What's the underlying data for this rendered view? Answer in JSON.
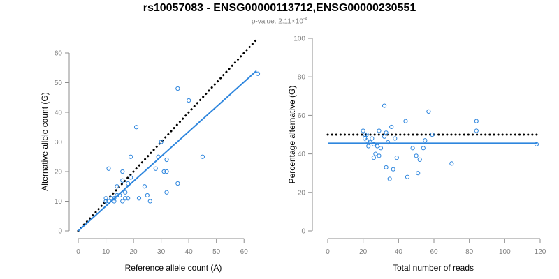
{
  "title": "rs10057083 - ENSG00000113712,ENSG00000230551",
  "subtitle": {
    "prefix": "p-value: 2.11×10",
    "exponent": "-4"
  },
  "colors": {
    "points": "#2e86de",
    "fit_line": "#2e86de",
    "reference_line": "#000000"
  },
  "chart_data": [
    {
      "type": "scatter",
      "xlabel": "Reference allele count (A)",
      "ylabel": "Alternative allele count (G)",
      "xlim": [
        0,
        65
      ],
      "ylim": [
        0,
        60
      ],
      "xticks": [
        0,
        10,
        20,
        30,
        40,
        50,
        60
      ],
      "yticks": [
        0,
        10,
        20,
        30,
        40,
        50,
        60
      ],
      "points": [
        [
          11,
          21
        ],
        [
          10,
          11
        ],
        [
          10,
          10
        ],
        [
          11,
          10
        ],
        [
          12,
          11
        ],
        [
          13,
          10
        ],
        [
          13,
          11
        ],
        [
          14,
          12
        ],
        [
          14,
          15
        ],
        [
          15,
          12
        ],
        [
          16,
          20
        ],
        [
          16,
          17
        ],
        [
          17,
          13
        ],
        [
          16,
          10
        ],
        [
          17,
          11
        ],
        [
          18,
          11
        ],
        [
          18,
          16
        ],
        [
          19,
          18
        ],
        [
          19,
          25
        ],
        [
          21,
          35
        ],
        [
          22,
          11
        ],
        [
          24,
          15
        ],
        [
          25,
          12
        ],
        [
          26,
          10
        ],
        [
          28,
          21
        ],
        [
          29,
          25
        ],
        [
          30,
          30
        ],
        [
          31,
          20
        ],
        [
          32,
          20
        ],
        [
          32,
          24
        ],
        [
          32,
          13
        ],
        [
          36,
          48
        ],
        [
          36,
          16
        ],
        [
          40,
          44
        ],
        [
          45,
          25
        ],
        [
          65,
          53
        ]
      ],
      "lines": [
        {
          "kind": "reference",
          "style": "dotted",
          "x": [
            0,
            64.5
          ],
          "y": [
            0,
            64.5
          ]
        },
        {
          "kind": "fit",
          "style": "solid",
          "x": [
            0,
            64.5
          ],
          "y": [
            0,
            54
          ]
        }
      ]
    },
    {
      "type": "scatter",
      "xlabel": "Total number of reads",
      "ylabel": "Percentage alternative (G)",
      "xlim": [
        0,
        120
      ],
      "ylim": [
        0,
        100
      ],
      "xticks": [
        0,
        20,
        40,
        60,
        80,
        100,
        120
      ],
      "yticks": [
        0,
        20,
        40,
        60,
        80,
        100
      ],
      "points": [
        [
          20,
          52
        ],
        [
          21,
          50
        ],
        [
          21,
          48
        ],
        [
          22,
          50
        ],
        [
          22,
          47
        ],
        [
          23,
          44
        ],
        [
          24,
          46
        ],
        [
          25,
          48
        ],
        [
          26,
          45
        ],
        [
          26,
          38
        ],
        [
          27,
          40
        ],
        [
          28,
          44
        ],
        [
          29,
          39
        ],
        [
          29,
          52
        ],
        [
          30,
          43
        ],
        [
          32,
          65
        ],
        [
          32,
          49
        ],
        [
          33,
          33
        ],
        [
          33,
          51
        ],
        [
          34,
          46
        ],
        [
          35,
          27
        ],
        [
          36,
          54
        ],
        [
          37,
          32
        ],
        [
          38,
          48
        ],
        [
          39,
          38
        ],
        [
          44,
          57
        ],
        [
          45,
          28
        ],
        [
          48,
          43
        ],
        [
          50,
          39
        ],
        [
          51,
          30
        ],
        [
          52,
          37
        ],
        [
          54,
          43
        ],
        [
          55,
          47
        ],
        [
          57,
          62
        ],
        [
          59,
          50
        ],
        [
          70,
          35
        ],
        [
          84,
          57
        ],
        [
          84,
          52
        ],
        [
          118,
          45
        ]
      ],
      "lines": [
        {
          "kind": "reference",
          "style": "dotted",
          "x": [
            0,
            118
          ],
          "y": [
            50,
            50
          ]
        },
        {
          "kind": "fit",
          "style": "solid",
          "x": [
            0,
            118
          ],
          "y": [
            45.5,
            45.5
          ]
        }
      ]
    }
  ]
}
